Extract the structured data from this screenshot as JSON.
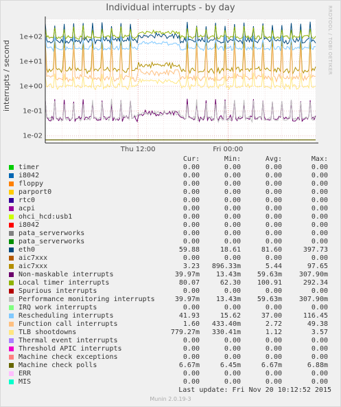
{
  "chart_data": {
    "type": "line",
    "title": "Individual interrupts - by day",
    "side_label": "RRDTOOL / TOBI OETIKER",
    "ylabel": "interrupts / second",
    "yscale": "log",
    "y_ticks": [
      "1e-02",
      "1e-01",
      "1e+00",
      "1e+01",
      "1e+02"
    ],
    "y_tick_values": [
      0.01,
      0.1,
      1,
      10,
      100
    ],
    "ylim": [
      0.005,
      500
    ],
    "x_ticks": [
      "Thu 12:00",
      "Fri 00:00"
    ],
    "grid": true,
    "columns": [
      "Cur:",
      "Min:",
      "Avg:",
      "Max:"
    ],
    "series": [
      {
        "name": "timer",
        "color": "#00cc00",
        "cur": "0.00",
        "min": "0.00",
        "avg": "0.00",
        "max": "0.00"
      },
      {
        "name": "i8042",
        "color": "#0066b3",
        "cur": "0.00",
        "min": "0.00",
        "avg": "0.00",
        "max": "0.00"
      },
      {
        "name": "floppy",
        "color": "#ff8000",
        "cur": "0.00",
        "min": "0.00",
        "avg": "0.00",
        "max": "0.00"
      },
      {
        "name": "parport0",
        "color": "#ffcc00",
        "cur": "0.00",
        "min": "0.00",
        "avg": "0.00",
        "max": "0.00"
      },
      {
        "name": "rtc0",
        "color": "#330099",
        "cur": "0.00",
        "min": "0.00",
        "avg": "0.00",
        "max": "0.00"
      },
      {
        "name": "acpi",
        "color": "#990099",
        "cur": "0.00",
        "min": "0.00",
        "avg": "0.00",
        "max": "0.00"
      },
      {
        "name": "ohci_hcd:usb1",
        "color": "#ccff00",
        "cur": "0.00",
        "min": "0.00",
        "avg": "0.00",
        "max": "0.00"
      },
      {
        "name": "i8042",
        "color": "#ff0000",
        "cur": "0.00",
        "min": "0.00",
        "avg": "0.00",
        "max": "0.00"
      },
      {
        "name": "pata_serverworks",
        "color": "#808080",
        "cur": "0.00",
        "min": "0.00",
        "avg": "0.00",
        "max": "0.00"
      },
      {
        "name": "pata_serverworks",
        "color": "#008f00",
        "cur": "0.00",
        "min": "0.00",
        "avg": "0.00",
        "max": "0.00"
      },
      {
        "name": "eth0",
        "color": "#00487d",
        "cur": "59.88",
        "min": "18.61",
        "avg": "81.60",
        "max": "397.73"
      },
      {
        "name": "aic7xxx",
        "color": "#b35a00",
        "cur": "0.00",
        "min": "0.00",
        "avg": "0.00",
        "max": "0.00"
      },
      {
        "name": "aic7xxx",
        "color": "#b38f00",
        "cur": "3.23",
        "min": "896.33m",
        "avg": "5.44",
        "max": "97.65"
      },
      {
        "name": "Non-maskable interrupts",
        "color": "#6b006b",
        "cur": "39.97m",
        "min": "13.43m",
        "avg": "59.63m",
        "max": "307.90m"
      },
      {
        "name": "Local timer interrupts",
        "color": "#8fb300",
        "cur": "80.07",
        "min": "62.30",
        "avg": "100.91",
        "max": "292.34"
      },
      {
        "name": "Spurious interrupts",
        "color": "#b30000",
        "cur": "0.00",
        "min": "0.00",
        "avg": "0.00",
        "max": "0.00"
      },
      {
        "name": "Performance monitoring interrupts",
        "color": "#bebebe",
        "cur": "39.97m",
        "min": "13.43m",
        "avg": "59.63m",
        "max": "307.90m"
      },
      {
        "name": "IRQ work interrupts",
        "color": "#80ff80",
        "cur": "0.00",
        "min": "0.00",
        "avg": "0.00",
        "max": "0.00"
      },
      {
        "name": "Rescheduling interrupts",
        "color": "#80c9ff",
        "cur": "41.93",
        "min": "15.62",
        "avg": "37.00",
        "max": "116.45"
      },
      {
        "name": "Function call interrupts",
        "color": "#ffc080",
        "cur": "1.60",
        "min": "433.40m",
        "avg": "2.72",
        "max": "49.38"
      },
      {
        "name": "TLB shootdowns",
        "color": "#ffe680",
        "cur": "779.27m",
        "min": "330.41m",
        "avg": "1.12",
        "max": "3.57"
      },
      {
        "name": "Thermal event interrupts",
        "color": "#aa80ff",
        "cur": "0.00",
        "min": "0.00",
        "avg": "0.00",
        "max": "0.00"
      },
      {
        "name": "Threshold APIC interrupts",
        "color": "#ee00cc",
        "cur": "0.00",
        "min": "0.00",
        "avg": "0.00",
        "max": "0.00"
      },
      {
        "name": "Machine check exceptions",
        "color": "#ff8080",
        "cur": "0.00",
        "min": "0.00",
        "avg": "0.00",
        "max": "0.00"
      },
      {
        "name": "Machine check polls",
        "color": "#666600",
        "cur": "6.67m",
        "min": "6.45m",
        "avg": "6.67m",
        "max": "6.88m"
      },
      {
        "name": "ERR",
        "color": "#ffbfff",
        "cur": "0.00",
        "min": "0.00",
        "avg": "0.00",
        "max": "0.00"
      },
      {
        "name": "MIS",
        "color": "#00ffcc",
        "cur": "0.00",
        "min": "0.00",
        "avg": "0.00",
        "max": "0.00"
      }
    ],
    "last_update": "Last update:  Fri Nov 20 10:12:52 2015",
    "footer": "Munin 2.0.19-3"
  }
}
